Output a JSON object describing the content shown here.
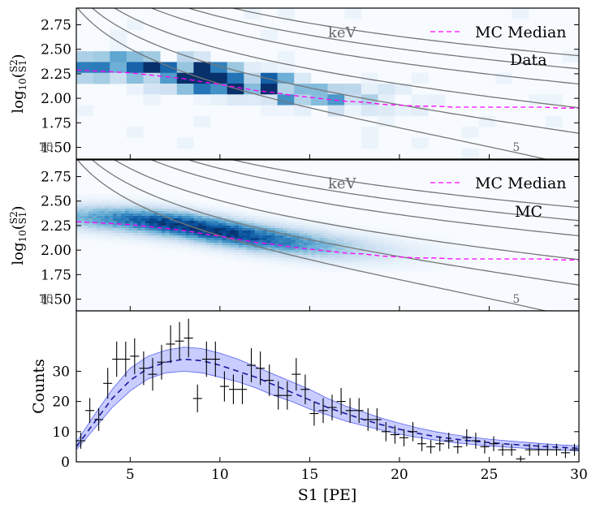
{
  "colors": {
    "median": "#ff00ff",
    "contour": "#777777",
    "band_fill": "#aab0ff",
    "band_edge": "#5560ee",
    "pred_line": "#1a1a99",
    "hist_light": "#e6f0fa",
    "hist_dark": "#08306b",
    "errorbar": "#000000",
    "panel_bg": "#f7fbff"
  },
  "chart_data": [
    {
      "type": "heatmap",
      "panel": "top",
      "ylabel_main": "log",
      "ylabel_sub": "10",
      "ylabel_num": "S2",
      "ylabel_den": "S1",
      "xlim": [
        2,
        30
      ],
      "ylim": [
        1.38,
        2.92
      ],
      "yticks": [
        "2.75",
        "2.50",
        "2.25",
        "2.00",
        "1.75",
        "1.50"
      ],
      "ytick_values": [
        2.75,
        2.5,
        2.25,
        2.0,
        1.75,
        1.5
      ],
      "energy_unit_label": "keV",
      "legend": [
        "MC Median"
      ],
      "dataset_label": "Data",
      "contour_labels": [
        "5",
        "7",
        "10",
        "15"
      ],
      "median": {
        "x": [
          2,
          3,
          4,
          5,
          6,
          7,
          8,
          9,
          10,
          11,
          12,
          13,
          14,
          15,
          16,
          17,
          18,
          19,
          20,
          21,
          22,
          23,
          24,
          25,
          26,
          27,
          28,
          29,
          30
        ],
        "y": [
          2.29,
          2.28,
          2.27,
          2.26,
          2.24,
          2.22,
          2.2,
          2.17,
          2.14,
          2.11,
          2.08,
          2.06,
          2.03,
          2.01,
          1.99,
          1.97,
          1.96,
          1.94,
          1.93,
          1.92,
          1.92,
          1.91,
          1.91,
          1.91,
          1.91,
          1.91,
          1.91,
          1.9,
          1.9
        ]
      }
    },
    {
      "type": "heatmap",
      "panel": "middle",
      "ylabel_main": "log",
      "ylabel_sub": "10",
      "ylabel_num": "S2",
      "ylabel_den": "S1",
      "xlim": [
        2,
        30
      ],
      "ylim": [
        1.38,
        2.92
      ],
      "yticks": [
        "2.75",
        "2.50",
        "2.25",
        "2.00",
        "1.75",
        "1.50"
      ],
      "ytick_values": [
        2.75,
        2.5,
        2.25,
        2.0,
        1.75,
        1.5
      ],
      "energy_unit_label": "keV",
      "legend": [
        "MC Median"
      ],
      "dataset_label": "MC",
      "contour_labels": [
        "5",
        "7",
        "10",
        "15"
      ],
      "median": {
        "x": [
          2,
          3,
          4,
          5,
          6,
          7,
          8,
          9,
          10,
          11,
          12,
          13,
          14,
          15,
          16,
          17,
          18,
          19,
          20,
          21,
          22,
          23,
          24,
          25,
          26,
          27,
          28,
          29,
          30
        ],
        "y": [
          2.29,
          2.28,
          2.27,
          2.26,
          2.24,
          2.22,
          2.2,
          2.17,
          2.14,
          2.11,
          2.08,
          2.06,
          2.03,
          2.01,
          1.99,
          1.97,
          1.96,
          1.94,
          1.93,
          1.92,
          1.92,
          1.91,
          1.91,
          1.91,
          1.91,
          1.91,
          1.91,
          1.9,
          1.9
        ]
      }
    },
    {
      "type": "scatter",
      "panel": "bottom",
      "xlabel": "S1 [PE]",
      "ylabel": "Counts",
      "xlim": [
        2,
        30
      ],
      "ylim": [
        0,
        50
      ],
      "xticks": [
        "5",
        "10",
        "15",
        "20",
        "25",
        "30"
      ],
      "xtick_values": [
        5,
        10,
        15,
        20,
        25,
        30
      ],
      "yticks": [
        "0",
        "10",
        "20",
        "30"
      ],
      "ytick_values": [
        0,
        10,
        20,
        30
      ],
      "points": {
        "x": [
          2.25,
          2.75,
          3.25,
          3.75,
          4.25,
          4.75,
          5.25,
          5.75,
          6.25,
          6.75,
          7.25,
          7.75,
          8.25,
          8.75,
          9.25,
          9.75,
          10.25,
          10.75,
          11.25,
          11.75,
          12.25,
          12.75,
          13.25,
          13.75,
          14.25,
          14.75,
          15.25,
          15.75,
          16.25,
          16.75,
          17.25,
          17.75,
          18.25,
          18.75,
          19.25,
          19.75,
          20.25,
          20.75,
          21.25,
          21.75,
          22.25,
          22.75,
          23.25,
          23.75,
          24.25,
          24.75,
          25.25,
          25.75,
          26.25,
          26.75,
          27.25,
          27.75,
          28.25,
          28.75,
          29.25,
          29.75
        ],
        "y": [
          7,
          17,
          14,
          26,
          34,
          34,
          35,
          31,
          29,
          33,
          39,
          40,
          41,
          21,
          34,
          34,
          25,
          24,
          24,
          32,
          31,
          27,
          22,
          22,
          29,
          24,
          16,
          17,
          18,
          20,
          17,
          17,
          14,
          14,
          10,
          9,
          8,
          10,
          6,
          5,
          6,
          7,
          5,
          8,
          7,
          5,
          6,
          4,
          4,
          1,
          4,
          4,
          4,
          4,
          3,
          4
        ]
      },
      "band": {
        "x": [
          2,
          3,
          4,
          5,
          6,
          7,
          8,
          9,
          10,
          11,
          12,
          13,
          14,
          15,
          16,
          17,
          18,
          19,
          20,
          21,
          22,
          23,
          24,
          25,
          26,
          27,
          28,
          29,
          30
        ],
        "median": [
          5,
          13,
          21,
          27,
          31,
          33,
          34,
          33.5,
          32,
          30,
          28,
          25.5,
          23,
          20.5,
          18,
          16,
          14,
          12.3,
          10.8,
          9.5,
          8.4,
          7.6,
          6.9,
          6.4,
          5.9,
          5.5,
          5.1,
          4.8,
          4.5
        ],
        "low": [
          4,
          11,
          18,
          23.5,
          27.5,
          29.5,
          30,
          29.5,
          28,
          26.5,
          24.5,
          22,
          20,
          17.5,
          15.5,
          13.5,
          12,
          10.5,
          9.2,
          8.1,
          7.2,
          6.4,
          5.8,
          5.3,
          4.9,
          4.5,
          4.2,
          3.9,
          3.6
        ],
        "high": [
          6.5,
          15.5,
          24,
          31,
          35,
          37,
          38,
          37.5,
          36,
          34,
          31.5,
          29,
          26.5,
          24,
          21,
          18.5,
          16.5,
          14.5,
          12.8,
          11.3,
          10,
          9,
          8.2,
          7.5,
          7,
          6.5,
          6,
          5.6,
          5.3
        ]
      }
    }
  ]
}
